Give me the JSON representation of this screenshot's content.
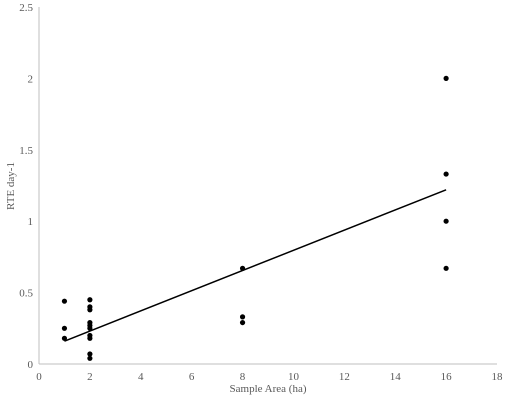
{
  "chart_data": {
    "type": "scatter",
    "title": "",
    "xlabel": "Sample Area (ha)",
    "ylabel": "RTE day-1",
    "xlim": [
      0,
      18
    ],
    "ylim": [
      0,
      2.5
    ],
    "xticks": [
      "0",
      "2",
      "4",
      "6",
      "8",
      "10",
      "12",
      "14",
      "16",
      "18"
    ],
    "yticks": [
      "0",
      "0.5",
      "1",
      "1.5",
      "2",
      "2.5"
    ],
    "grid": false,
    "legend": "none",
    "marker_color": "#000000",
    "points": [
      {
        "x": 1,
        "y": 0.44
      },
      {
        "x": 1,
        "y": 0.25
      },
      {
        "x": 1,
        "y": 0.18
      },
      {
        "x": 2,
        "y": 0.45
      },
      {
        "x": 2,
        "y": 0.4
      },
      {
        "x": 2,
        "y": 0.38
      },
      {
        "x": 2,
        "y": 0.29
      },
      {
        "x": 2,
        "y": 0.27
      },
      {
        "x": 2,
        "y": 0.25
      },
      {
        "x": 2,
        "y": 0.2
      },
      {
        "x": 2,
        "y": 0.18
      },
      {
        "x": 2,
        "y": 0.07
      },
      {
        "x": 2,
        "y": 0.04
      },
      {
        "x": 8,
        "y": 0.67
      },
      {
        "x": 8,
        "y": 0.33
      },
      {
        "x": 8,
        "y": 0.29
      },
      {
        "x": 16,
        "y": 2.0
      },
      {
        "x": 16,
        "y": 1.33
      },
      {
        "x": 16,
        "y": 1.0
      },
      {
        "x": 16,
        "y": 0.67
      }
    ],
    "trendline": {
      "type": "linear",
      "x": [
        1,
        16
      ],
      "y": [
        0.16,
        1.22
      ]
    }
  }
}
